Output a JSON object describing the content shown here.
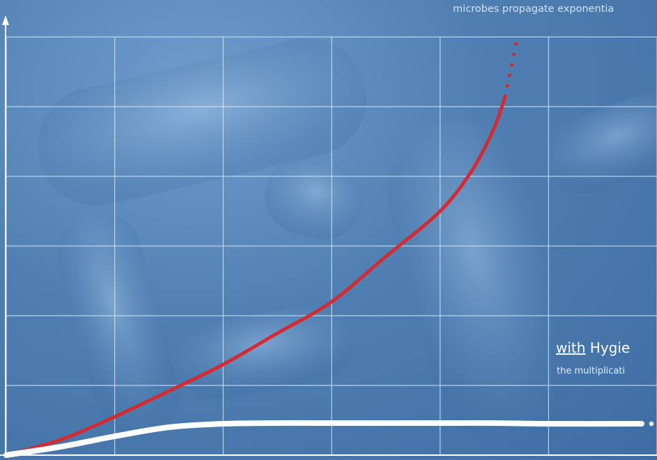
{
  "annotations": {
    "top": "microbes propagate exponentia",
    "hygiene_prefix": "with",
    "hygiene_word": "Hygie",
    "hygiene_sub": "the multiplicati"
  },
  "colors": {
    "background": "#4f7fb2",
    "grid": "#d6e6f6",
    "without_hygiene_curve": "#d42a32",
    "with_hygiene_curve": "#ffffff",
    "axis": "#ffffff"
  },
  "chart_data": {
    "type": "line",
    "title": "",
    "xlabel": "",
    "ylabel": "",
    "grid": true,
    "xlim": [
      0,
      6
    ],
    "ylim": [
      0,
      6
    ],
    "series": [
      {
        "color": "#d42a32",
        "style": "solid-then-dotted",
        "x": [
          0,
          0.5,
          1,
          1.5,
          2,
          2.5,
          3,
          3.5,
          4,
          4.3,
          4.5,
          4.6,
          4.7
        ],
        "y": [
          0,
          0.22,
          0.55,
          0.92,
          1.3,
          1.75,
          2.2,
          2.85,
          3.5,
          4.1,
          4.7,
          5.15,
          5.9
        ]
      },
      {
        "color": "#ffffff",
        "style": "solid-then-dotted",
        "x": [
          0,
          0.5,
          1,
          1.5,
          2,
          2.5,
          3,
          3.5,
          4,
          4.5,
          5,
          5.5,
          6
        ],
        "y": [
          0,
          0.12,
          0.27,
          0.4,
          0.45,
          0.46,
          0.46,
          0.46,
          0.46,
          0.46,
          0.45,
          0.45,
          0.45
        ]
      }
    ]
  }
}
